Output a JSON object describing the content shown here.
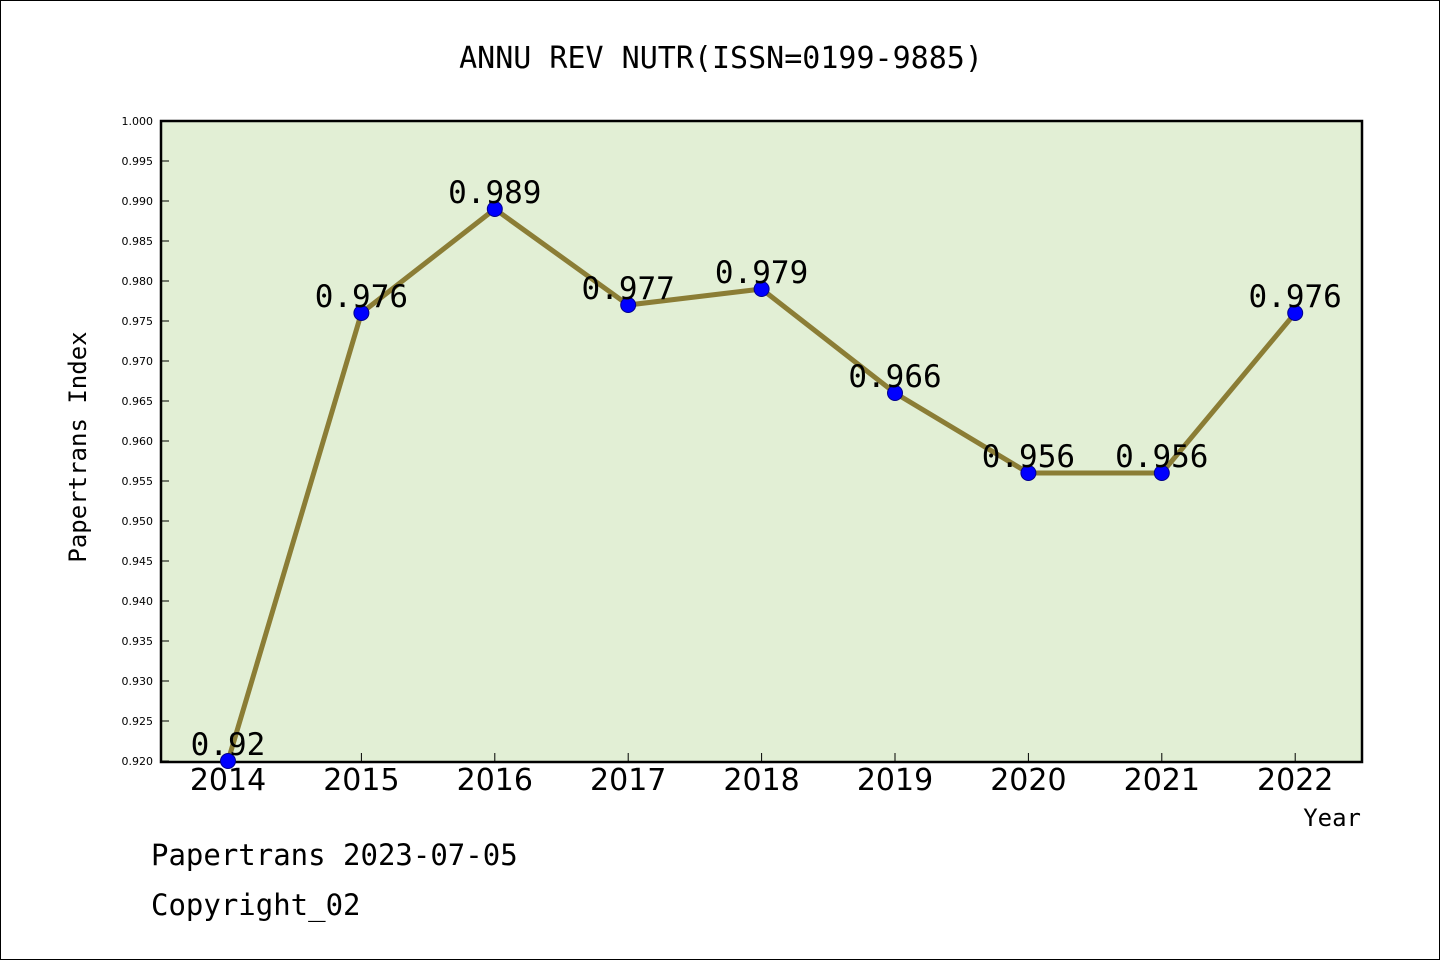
{
  "chart_data": {
    "type": "line",
    "title": "ANNU REV NUTR(ISSN=0199-9885)",
    "xlabel": "Year",
    "ylabel": "Papertrans Index",
    "categories": [
      "2014",
      "2015",
      "2016",
      "2017",
      "2018",
      "2019",
      "2020",
      "2021",
      "2022"
    ],
    "values": [
      0.92,
      0.976,
      0.989,
      0.977,
      0.979,
      0.966,
      0.956,
      0.956,
      0.976
    ],
    "data_labels": [
      "0.92",
      "0.976",
      "0.989",
      "0.977",
      "0.979",
      "0.966",
      "0.956",
      "0.956",
      "0.976"
    ],
    "ylim": [
      0.92,
      1.0
    ],
    "yticks": [
      "0.920",
      "0.925",
      "0.930",
      "0.935",
      "0.940",
      "0.945",
      "0.950",
      "0.955",
      "0.960",
      "0.965",
      "0.970",
      "0.975",
      "0.980",
      "0.985",
      "0.990",
      "0.995",
      "1.000"
    ],
    "grid": false,
    "line_color": "#8b7d35",
    "marker_color": "#0000ff",
    "plot_background": "#e2efd5"
  },
  "footer": {
    "line1": "Papertrans 2023-07-05",
    "line2": "Copyright_02"
  }
}
